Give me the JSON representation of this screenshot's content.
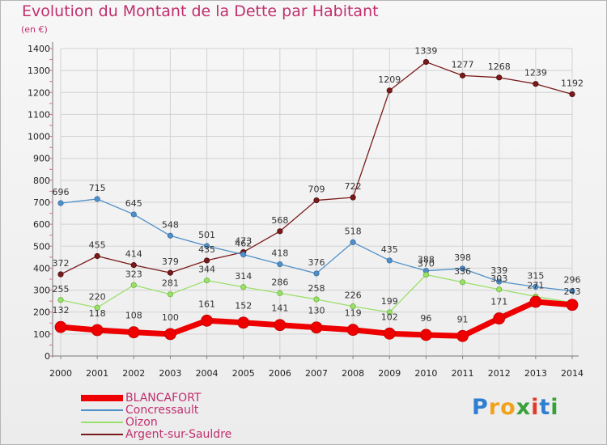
{
  "title": "Evolution du Montant de la Dette par Habitant",
  "subtitle": "(en €)",
  "logo": {
    "letters": [
      "P",
      "r",
      "o",
      "x",
      "i",
      "t",
      "i"
    ],
    "colors": [
      "#2f7fd0",
      "#f1a21d",
      "#f1a21d",
      "#3aa13a",
      "#e23b2a",
      "#2f7fd0",
      "#3aa13a"
    ]
  },
  "chart_data": {
    "type": "line",
    "x": [
      "2000",
      "2001",
      "2002",
      "2003",
      "2004",
      "2005",
      "2006",
      "2007",
      "2008",
      "2009",
      "2010",
      "2011",
      "2012",
      "2013",
      "2014"
    ],
    "y_ticks": [
      "0",
      "100",
      "200",
      "300",
      "400",
      "500",
      "600",
      "700",
      "800",
      "900",
      "1000",
      "1100",
      "1200",
      "1300",
      "1400"
    ],
    "ylim": [
      0,
      1400
    ],
    "grid": true,
    "legend_position": "bottom-left",
    "series": [
      {
        "name": "BLANCAFORT",
        "color": "#ee0000",
        "values": [
          132,
          118,
          108,
          100,
          161,
          152,
          141,
          130,
          119,
          102,
          96,
          91,
          171,
          247,
          233
        ],
        "labels": [
          "132",
          "118",
          "108",
          "100",
          "161",
          "152",
          "141",
          "130",
          "119",
          "102",
          "96",
          "91",
          "171",
          "",
          ""
        ]
      },
      {
        "name": "Concressault",
        "color": "#4f8fc9",
        "values": [
          696,
          715,
          645,
          548,
          501,
          462,
          418,
          376,
          518,
          435,
          388,
          398,
          339,
          315,
          296
        ],
        "labels": [
          "696",
          "715",
          "645",
          "548",
          "501",
          "462",
          "418",
          "376",
          "518",
          "435",
          "388",
          "398",
          "339",
          "315",
          "296"
        ]
      },
      {
        "name": "Oizon",
        "color": "#9be06b",
        "values": [
          255,
          220,
          323,
          281,
          344,
          314,
          286,
          258,
          226,
          199,
          370,
          336,
          303,
          271,
          243
        ],
        "labels": [
          "255",
          "220",
          "323",
          "281",
          "344",
          "314",
          "286",
          "258",
          "226",
          "199",
          "370",
          "336",
          "303",
          "271",
          "243"
        ]
      },
      {
        "name": "Argent-sur-Sauldre",
        "color": "#7a1a1a",
        "values": [
          372,
          455,
          414,
          379,
          435,
          473,
          568,
          709,
          722,
          1209,
          1339,
          1277,
          1268,
          1239,
          1192
        ],
        "labels": [
          "372",
          "455",
          "414",
          "379",
          "435",
          "473",
          "568",
          "709",
          "722",
          "1209",
          "1339",
          "1277",
          "1268",
          "1239",
          "1192"
        ]
      }
    ]
  }
}
